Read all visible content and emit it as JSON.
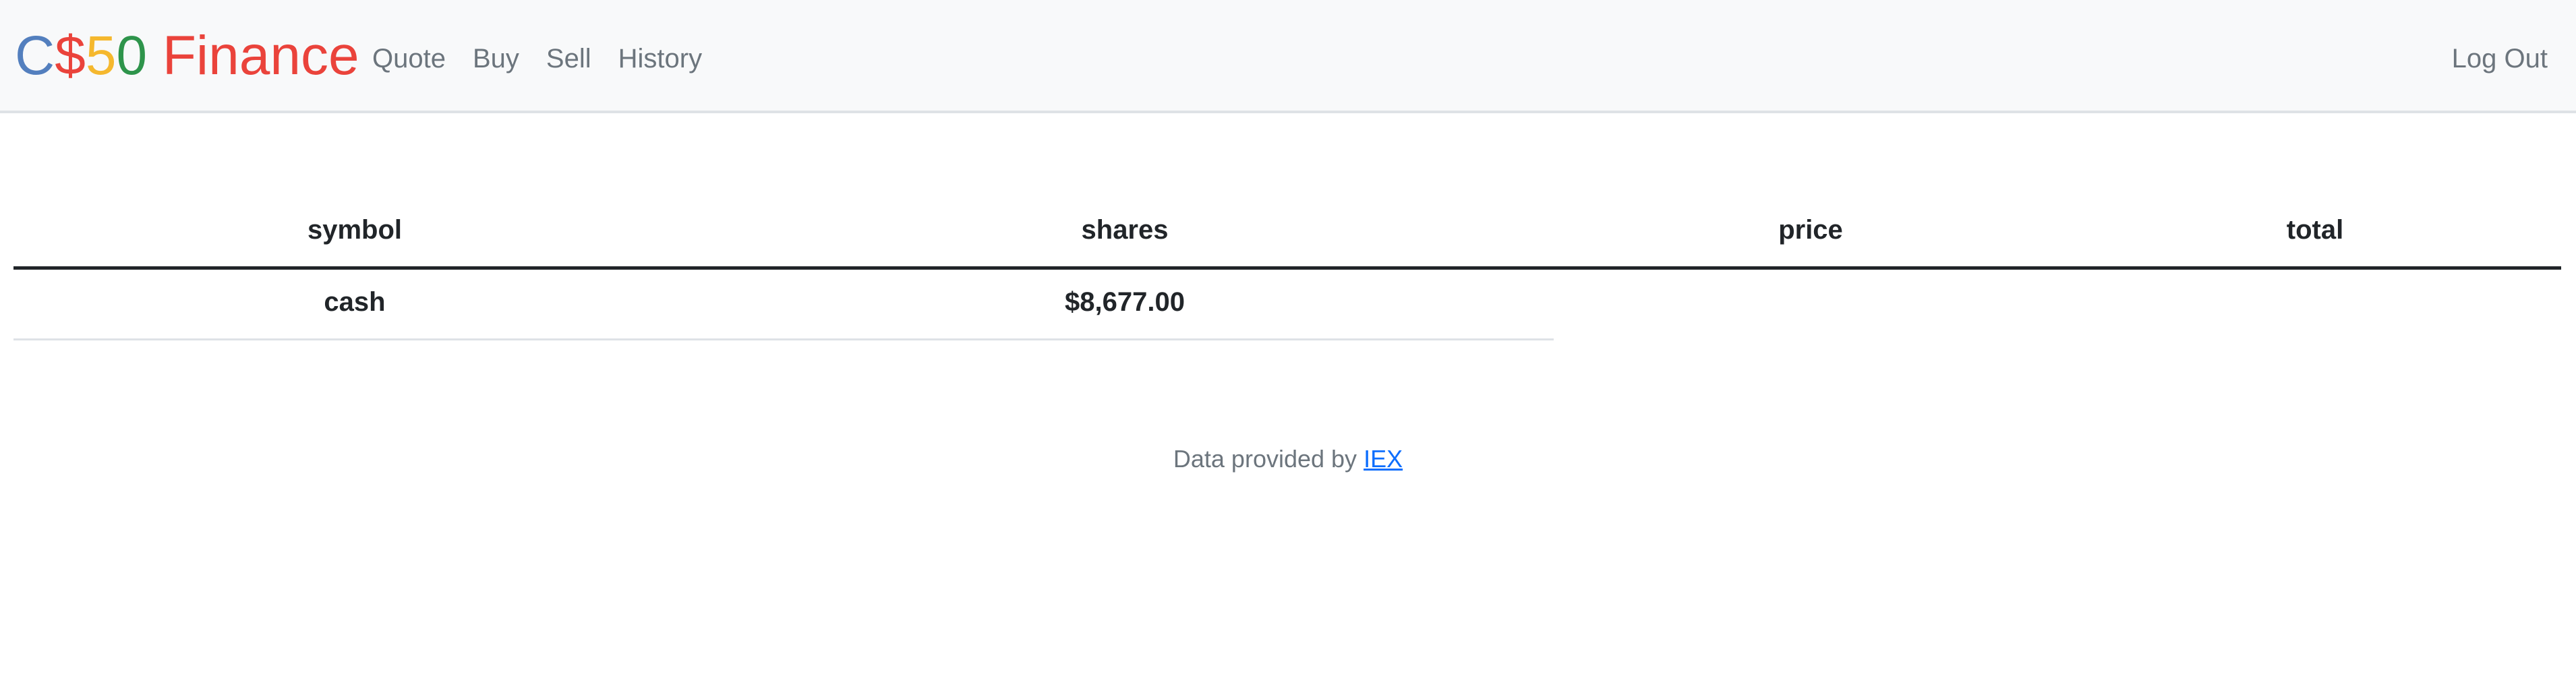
{
  "brand": {
    "parts": [
      {
        "text": "C",
        "color": "#537fbe"
      },
      {
        "text": "$",
        "color": "#ea433b"
      },
      {
        "text": "5",
        "color": "#f5b82e"
      },
      {
        "text": "0",
        "color": "#2e944b"
      },
      {
        "text": " Finance",
        "color": "#ea433b"
      }
    ]
  },
  "nav": {
    "links": [
      "Quote",
      "Buy",
      "Sell",
      "History"
    ],
    "logout": "Log Out"
  },
  "table": {
    "headers": [
      "symbol",
      "shares",
      "price",
      "total"
    ],
    "rows": [
      [
        "cash",
        "$8,677.00"
      ]
    ]
  },
  "footer": {
    "text": "Data provided by ",
    "link": "IEX"
  },
  "colors": {
    "navbar_bg": "#f8f9fa",
    "nav_link": "#6c757d",
    "link": "#0d6efd"
  }
}
